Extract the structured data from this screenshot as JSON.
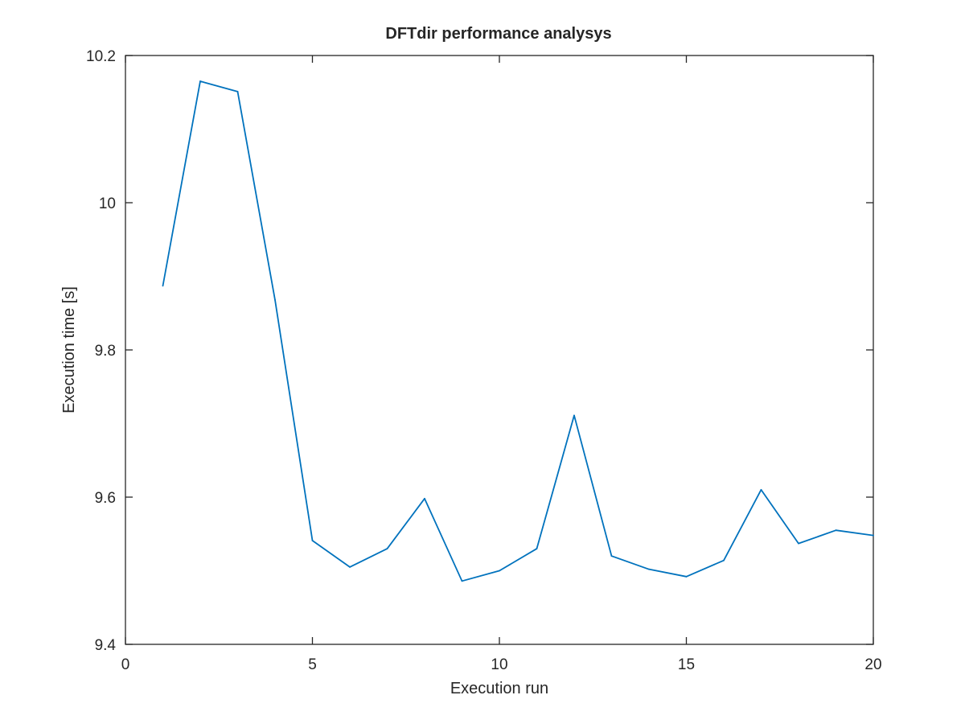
{
  "chart_data": {
    "type": "line",
    "title": "DFTdir performance analysys",
    "xlabel": "Execution run",
    "ylabel": "Execution time [s]",
    "xlim": [
      0,
      20
    ],
    "ylim": [
      9.4,
      10.2
    ],
    "xticks": [
      "0",
      "5",
      "10",
      "15",
      "20"
    ],
    "yticks": [
      "9.4",
      "9.6",
      "9.8",
      "10",
      "10.2"
    ],
    "grid": false,
    "legend": "none",
    "line_color": "#0072BD",
    "series": [
      {
        "x": [
          1,
          2,
          3,
          4,
          5,
          6,
          7,
          8,
          9,
          10,
          11,
          12,
          13,
          14,
          15,
          16,
          17,
          18,
          19,
          20
        ],
        "values": [
          9.887,
          10.165,
          10.151,
          9.868,
          9.541,
          9.505,
          9.53,
          9.598,
          9.486,
          9.5,
          9.53,
          9.711,
          9.52,
          9.502,
          9.492,
          9.514,
          9.61,
          9.537,
          9.555,
          9.548
        ]
      }
    ]
  }
}
